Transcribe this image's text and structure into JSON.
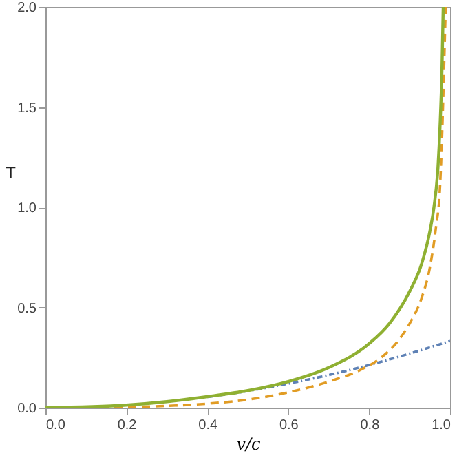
{
  "chart_data": {
    "type": "line",
    "xlabel": "v/c",
    "ylabel": "T",
    "xlim": [
      0,
      1
    ],
    "ylim": [
      0,
      2
    ],
    "xticks": [
      {
        "value": 0,
        "label": "0.0"
      },
      0.2,
      0.4,
      0.6,
      0.8,
      {
        "value": 1,
        "label": "1.0"
      }
    ],
    "yticks": [
      {
        "value": 0,
        "label": "0.0"
      },
      0.5,
      {
        "value": 1,
        "label": "1.0"
      },
      1.5,
      {
        "value": 2,
        "label": "2.0"
      }
    ],
    "grid": false,
    "marker": "none",
    "series": [
      {
        "color": "#5e81b5",
        "line_style": "dashdot",
        "x": [
          0.4,
          0.5,
          0.6,
          0.7,
          0.8,
          0.9,
          1.0
        ],
        "values": [
          0.053,
          0.083,
          0.12,
          0.163,
          0.213,
          0.27,
          0.333
        ]
      },
      {
        "color": "#e19c24",
        "line_style": "dashed",
        "x": [
          0,
          0.2,
          0.3,
          0.4,
          0.5,
          0.6,
          0.7,
          0.78,
          0.83,
          0.87,
          0.9,
          0.93,
          0.95,
          0.965,
          0.975,
          0.98,
          0.985,
          0.989
        ],
        "values": [
          0,
          0.003,
          0.009,
          0.02,
          0.04,
          0.076,
          0.13,
          0.19,
          0.25,
          0.33,
          0.42,
          0.55,
          0.7,
          0.9,
          1.1,
          1.35,
          1.7,
          2.0
        ]
      },
      {
        "color": "#8fb032",
        "line_style": "solid",
        "x": [
          0,
          0.2,
          0.3,
          0.4,
          0.5,
          0.6,
          0.7,
          0.8,
          0.85,
          0.9,
          0.93,
          0.95,
          0.96,
          0.97,
          0.975,
          0.98,
          0.983
        ],
        "values": [
          0,
          0.013,
          0.03,
          0.055,
          0.085,
          0.13,
          0.2,
          0.32,
          0.42,
          0.58,
          0.72,
          0.88,
          1.0,
          1.2,
          1.4,
          1.7,
          2.0
        ]
      }
    ]
  }
}
